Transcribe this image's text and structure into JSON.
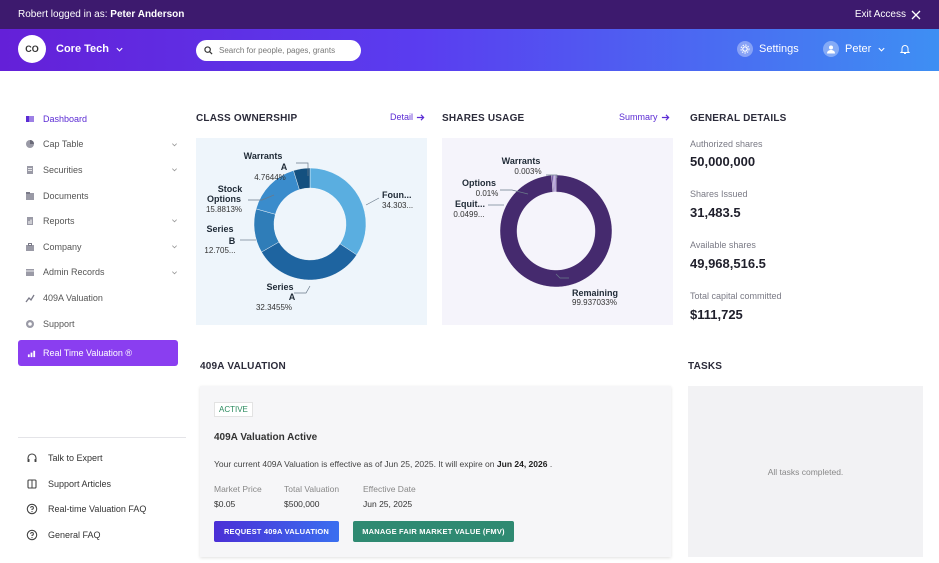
{
  "topbar": {
    "prefix": "Robert logged in as:",
    "user": "Peter Anderson",
    "exit_label": "Exit Access"
  },
  "header": {
    "org_initials": "CO",
    "org_name": "Core Tech",
    "search_placeholder": "Search for people, pages, grants",
    "settings_label": "Settings",
    "user_name": "Peter"
  },
  "sidebar": {
    "items": [
      {
        "label": "Dashboard",
        "icon": "dashboard-icon"
      },
      {
        "label": "Cap Table",
        "icon": "pie-icon"
      },
      {
        "label": "Securities",
        "icon": "securities-icon"
      },
      {
        "label": "Documents",
        "icon": "documents-icon"
      },
      {
        "label": "Reports",
        "icon": "reports-icon"
      },
      {
        "label": "Company",
        "icon": "company-icon"
      },
      {
        "label": "Admin Records",
        "icon": "admin-icon"
      },
      {
        "label": "409A Valuation",
        "icon": "valuation-icon"
      },
      {
        "label": "Support",
        "icon": "support-icon"
      }
    ],
    "cta_label": "Real Time Valuation ®",
    "help": [
      {
        "label": "Talk to Expert",
        "icon": "headset-icon"
      },
      {
        "label": "Support Articles",
        "icon": "book-icon"
      },
      {
        "label": "Real-time Valuation FAQ",
        "icon": "question-icon"
      },
      {
        "label": "General FAQ",
        "icon": "question-icon"
      }
    ]
  },
  "class_ownership": {
    "title": "CLASS OWNERSHIP",
    "link": "Detail",
    "labels": [
      {
        "name": "Warrants",
        "name2": "A",
        "value": "4.7644%"
      },
      {
        "name": "Stock",
        "name2": "Options",
        "value": "15.8813%"
      },
      {
        "name": "Series",
        "name2": "B",
        "value": "12.705..."
      },
      {
        "name": "Series",
        "name2": "A",
        "value": "32.3455%"
      },
      {
        "name": "Foun...",
        "name2": "",
        "value": "34.303..."
      }
    ]
  },
  "shares_usage": {
    "title": "SHARES USAGE",
    "link": "Summary",
    "labels": [
      {
        "name": "Warrants",
        "value": "0.003%"
      },
      {
        "name": "Options",
        "value": "0.01%"
      },
      {
        "name": "Equit...",
        "value": "0.0499..."
      },
      {
        "name": "Remaining",
        "value": "99.937033%"
      }
    ]
  },
  "chart_data": [
    {
      "type": "pie",
      "title": "CLASS OWNERSHIP",
      "categories": [
        "Founders",
        "Series A",
        "Series B",
        "Stock Options",
        "Warrants A"
      ],
      "values": [
        34.303,
        32.3455,
        12.705,
        15.8813,
        4.7644
      ],
      "colors": [
        "#5aaee0",
        "#1e64a0",
        "#2f7db8",
        "#3a8ccc",
        "#14507f"
      ]
    },
    {
      "type": "pie",
      "title": "SHARES USAGE",
      "categories": [
        "Remaining",
        "Equity",
        "Options",
        "Warrants"
      ],
      "values": [
        99.937033,
        0.0499,
        0.01,
        0.003
      ],
      "colors": [
        "#452a6e",
        "#6b4aa0",
        "#7e5fb4",
        "#9a80c8"
      ]
    }
  ],
  "general_details": {
    "title": "GENERAL DETAILS",
    "items": [
      {
        "label": "Authorized shares",
        "value": "50,000,000"
      },
      {
        "label": "Shares Issued",
        "value": "31,483.5"
      },
      {
        "label": "Available shares",
        "value": "49,968,516.5"
      },
      {
        "label": "Total capital committed",
        "value": "$111,725"
      }
    ]
  },
  "valuation": {
    "title": "409A VALUATION",
    "badge": "ACTIVE",
    "heading": "409A Valuation Active",
    "text_prefix": "Your current 409A Valuation is effective as of Jun 25, 2025. It will expire on",
    "expiry": "Jun 24, 2026",
    "text_suffix": ".",
    "meta": [
      {
        "label": "Market Price",
        "value": "$0.05"
      },
      {
        "label": "Total Valuation",
        "value": "$500,000"
      },
      {
        "label": "Effective Date",
        "value": "Jun 25, 2025"
      }
    ],
    "btn_request": "REQUEST 409A VALUATION",
    "btn_fmv": "MANAGE FAIR MARKET VALUE (FMV)"
  },
  "tasks": {
    "title": "TASKS",
    "empty": "All tasks completed."
  },
  "colors": {
    "accent": "#5b2bd4",
    "topbar": "#3d1a6e",
    "cta": "#8a3ef0",
    "fmv_button": "#2f8a72"
  }
}
